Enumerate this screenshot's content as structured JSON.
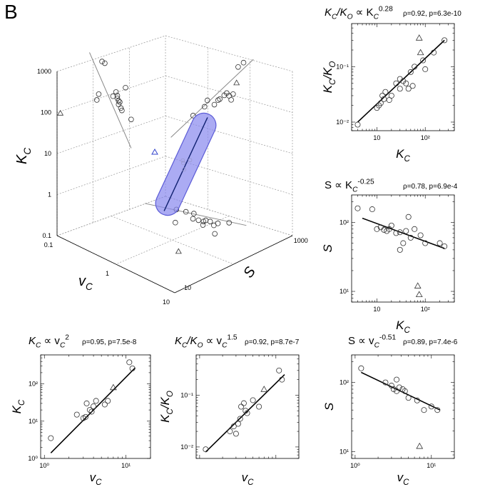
{
  "panel_label": "B",
  "chart_data": [
    {
      "id": "p3d",
      "type": "scatter",
      "subtype": "3d-projection",
      "xlabel": "v",
      "xlabel_sub": "C",
      "ylabel": "S",
      "zlabel": "K",
      "zlabel_sub": "C",
      "x_ticks": [
        "10",
        "1",
        "0.1"
      ],
      "y_ticks": [
        "10",
        "1000"
      ],
      "z_ticks": [
        "1000",
        "100",
        "10",
        "1",
        "0.1"
      ],
      "log_scale": true,
      "grid": true,
      "colors": {
        "tube": "#5b5bd6",
        "tube_fill": "#8888ee",
        "marker": "#333333",
        "fit": "#888888"
      },
      "projection_vKc": {
        "circles": [
          [
            0.45,
            90
          ],
          [
            0.5,
            120
          ],
          [
            0.6,
            700
          ],
          [
            0.7,
            600
          ],
          [
            1.1,
            80
          ],
          [
            1.3,
            95
          ],
          [
            1.4,
            65
          ],
          [
            1.4,
            75
          ],
          [
            1.5,
            55
          ],
          [
            1.5,
            45
          ],
          [
            1.6,
            50
          ],
          [
            1.7,
            35
          ],
          [
            1.8,
            30
          ],
          [
            2.2,
            100
          ],
          [
            3,
            15
          ]
        ],
        "triangles": [
          [
            0.06,
            90
          ]
        ],
        "fit": [
          [
            0.3,
            1500
          ],
          [
            3,
            3
          ]
        ]
      },
      "projection_SKc": {
        "circles": [
          [
            25,
            15
          ],
          [
            40,
            30
          ],
          [
            45,
            45
          ],
          [
            60,
            40
          ],
          [
            70,
            55
          ],
          [
            75,
            60
          ],
          [
            90,
            80
          ],
          [
            100,
            95
          ],
          [
            110,
            85
          ],
          [
            120,
            70
          ],
          [
            130,
            100
          ],
          [
            160,
            500
          ],
          [
            200,
            700
          ]
        ],
        "triangles": [
          [
            150,
            200
          ]
        ],
        "fit": [
          [
            10,
            3
          ],
          [
            300,
            1000
          ]
        ]
      },
      "projection_vS": {
        "circles": [
          [
            2,
            80
          ],
          [
            2.5,
            90
          ],
          [
            3,
            100
          ],
          [
            3.5,
            75
          ],
          [
            4,
            80
          ],
          [
            4.5,
            85
          ],
          [
            4.5,
            95
          ],
          [
            5,
            70
          ],
          [
            5,
            100
          ],
          [
            6,
            90
          ],
          [
            6,
            110
          ],
          [
            7,
            150
          ],
          [
            8,
            60
          ],
          [
            3,
            40
          ]
        ],
        "triangles": [
          [
            8,
            10
          ]
        ],
        "fit": [
          [
            1,
            50
          ],
          [
            10,
            200
          ]
        ]
      },
      "triangle_cloud": [
        [
          0.8,
          80,
          10
        ]
      ]
    },
    {
      "id": "pA",
      "type": "scatter",
      "annotation_formula": "K_C/K_O ∝ K_C^0.28",
      "annotation_stats": "ρ=0.92, p=6.3e-10",
      "ylabel": "K_C/K_O",
      "xlabel": "K_C",
      "x_log": true,
      "y_log": true,
      "xlim": [
        3,
        400
      ],
      "ylim": [
        0.007,
        0.6
      ],
      "x_tick_labels": [
        "10",
        "10²"
      ],
      "y_tick_labels": [
        "10⁻²",
        "10⁻¹"
      ],
      "circles": [
        [
          4,
          0.009
        ],
        [
          10,
          0.018
        ],
        [
          11,
          0.02
        ],
        [
          12,
          0.022
        ],
        [
          13,
          0.03
        ],
        [
          14,
          0.026
        ],
        [
          15,
          0.035
        ],
        [
          18,
          0.025
        ],
        [
          20,
          0.03
        ],
        [
          25,
          0.05
        ],
        [
          30,
          0.06
        ],
        [
          35,
          0.055
        ],
        [
          40,
          0.05
        ],
        [
          45,
          0.04
        ],
        [
          50,
          0.08
        ],
        [
          60,
          0.1
        ],
        [
          90,
          0.13
        ],
        [
          100,
          0.09
        ],
        [
          150,
          0.18
        ],
        [
          250,
          0.3
        ],
        [
          55,
          0.045
        ],
        [
          30,
          0.04
        ]
      ],
      "triangles": [
        [
          75,
          0.33
        ],
        [
          80,
          0.18
        ]
      ],
      "fit": [
        [
          4,
          0.01
        ],
        [
          250,
          0.3
        ]
      ]
    },
    {
      "id": "pB",
      "type": "scatter",
      "annotation_formula": "S ∝ K_C^-0.25",
      "annotation_stats": "ρ=0.78, p=6.9e-4",
      "ylabel": "S",
      "xlabel": "K_C",
      "x_log": true,
      "y_log": true,
      "xlim": [
        3,
        400
      ],
      "ylim": [
        7,
        250
      ],
      "x_tick_labels": [
        "10",
        "10²"
      ],
      "y_tick_labels": [
        "10¹",
        "10²"
      ],
      "circles": [
        [
          4,
          160
        ],
        [
          8,
          155
        ],
        [
          10,
          80
        ],
        [
          12,
          85
        ],
        [
          14,
          78
        ],
        [
          16,
          75
        ],
        [
          18,
          80
        ],
        [
          20,
          90
        ],
        [
          25,
          70
        ],
        [
          30,
          72
        ],
        [
          35,
          50
        ],
        [
          40,
          75
        ],
        [
          45,
          120
        ],
        [
          50,
          60
        ],
        [
          60,
          80
        ],
        [
          80,
          65
        ],
        [
          100,
          50
        ],
        [
          200,
          50
        ],
        [
          250,
          45
        ],
        [
          30,
          40
        ]
      ],
      "triangles": [
        [
          70,
          12
        ],
        [
          75,
          9
        ]
      ],
      "fit": [
        [
          5,
          115
        ],
        [
          250,
          42
        ]
      ]
    },
    {
      "id": "pC",
      "type": "scatter",
      "annotation_formula": "K_C ∝ v_C^2",
      "annotation_stats": "ρ=0.95, p=7.5e-8",
      "ylabel": "K_C",
      "xlabel": "v_C",
      "x_log": true,
      "y_log": true,
      "xlim": [
        0.9,
        20
      ],
      "ylim": [
        1,
        600
      ],
      "x_tick_labels": [
        "10⁰",
        "10¹"
      ],
      "y_tick_labels": [
        "10⁰",
        "10¹",
        "10²"
      ],
      "circles": [
        [
          1.2,
          3.5
        ],
        [
          2.5,
          15
        ],
        [
          3,
          12
        ],
        [
          3.2,
          13
        ],
        [
          3.3,
          30
        ],
        [
          3.6,
          20
        ],
        [
          3.8,
          18
        ],
        [
          4,
          25
        ],
        [
          4.3,
          35
        ],
        [
          5.5,
          28
        ],
        [
          6,
          35
        ],
        [
          11,
          380
        ],
        [
          12,
          260
        ]
      ],
      "triangles": [
        [
          7,
          80
        ]
      ],
      "fit": [
        [
          1.2,
          1.4
        ],
        [
          13,
          270
        ]
      ]
    },
    {
      "id": "pD",
      "type": "scatter",
      "annotation_formula": "K_C/K_O ∝ v_C^1.5",
      "annotation_stats": "ρ=0.92, p=8.7e-7",
      "ylabel": "K_C/K_O",
      "xlabel": "v_C",
      "x_log": true,
      "y_log": true,
      "xlim": [
        0.9,
        20
      ],
      "ylim": [
        0.006,
        0.6
      ],
      "x_tick_labels": [],
      "y_tick_labels": [
        "10⁻²",
        "10⁻¹"
      ],
      "circles": [
        [
          1.2,
          0.009
        ],
        [
          2.5,
          0.02
        ],
        [
          2.8,
          0.025
        ],
        [
          3,
          0.018
        ],
        [
          3.2,
          0.028
        ],
        [
          3.4,
          0.035
        ],
        [
          3.5,
          0.06
        ],
        [
          3.8,
          0.07
        ],
        [
          4,
          0.05
        ],
        [
          4.2,
          0.045
        ],
        [
          5,
          0.08
        ],
        [
          6,
          0.06
        ],
        [
          11,
          0.3
        ],
        [
          12,
          0.2
        ]
      ],
      "triangles": [
        [
          7,
          0.13
        ]
      ],
      "fit": [
        [
          1.2,
          0.008
        ],
        [
          13,
          0.25
        ]
      ]
    },
    {
      "id": "pE",
      "type": "scatter",
      "annotation_formula": "S ∝ v_C^-0.51",
      "annotation_stats": "ρ=0.89, p=7.4e-6",
      "ylabel": "S",
      "xlabel": "v_C",
      "x_log": true,
      "y_log": true,
      "xlim": [
        0.9,
        20
      ],
      "ylim": [
        8,
        250
      ],
      "x_tick_labels": [
        "10⁰",
        "10¹"
      ],
      "y_tick_labels": [
        "10¹",
        "10²"
      ],
      "circles": [
        [
          1.2,
          160
        ],
        [
          2.5,
          100
        ],
        [
          3,
          90
        ],
        [
          3.2,
          80
        ],
        [
          3.5,
          75
        ],
        [
          3.8,
          85
        ],
        [
          4.2,
          80
        ],
        [
          4.5,
          75
        ],
        [
          5,
          60
        ],
        [
          6.5,
          55
        ],
        [
          8,
          40
        ],
        [
          10,
          45
        ],
        [
          12,
          40
        ],
        [
          3.5,
          110
        ]
      ],
      "triangles": [
        [
          7,
          12
        ]
      ],
      "fit": [
        [
          1.2,
          140
        ],
        [
          13,
          40
        ]
      ]
    }
  ]
}
